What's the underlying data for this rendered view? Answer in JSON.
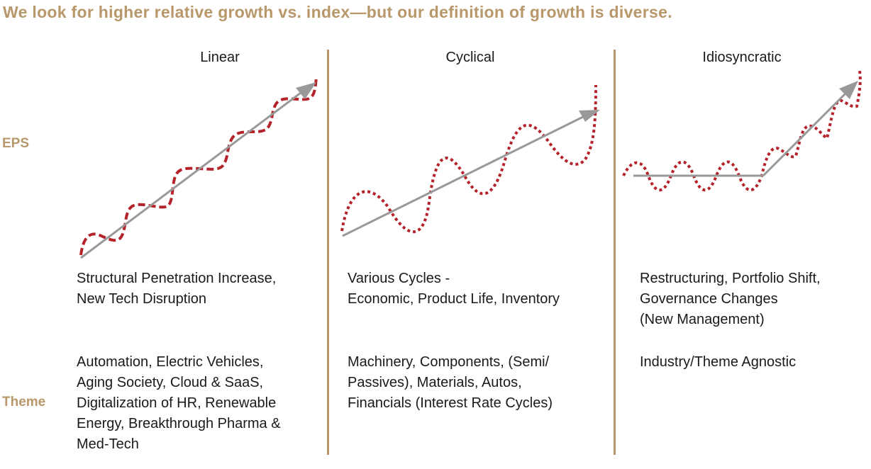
{
  "title": "We look for higher relative growth vs. index—but our definition of growth is diverse.",
  "row_labels": {
    "eps": "EPS",
    "theme": "Theme"
  },
  "columns": [
    {
      "heading": "Linear",
      "driver_lines": [
        "Structural Penetration Increase,",
        "New Tech Disruption"
      ],
      "theme_lines": [
        "Automation, Electric Vehicles,",
        "Aging Society, Cloud & SaaS,",
        "Digitalization of HR, Renewable",
        "Energy, Breakthrough Pharma &",
        "Med-Tech"
      ]
    },
    {
      "heading": "Cyclical",
      "driver_lines": [
        "Various Cycles -",
        "Economic, Product Life, Inventory"
      ],
      "theme_lines": [
        "Machinery, Components, (Semi/",
        "Passives), Materials, Autos,",
        "Financials (Interest Rate Cycles)"
      ]
    },
    {
      "heading": "Idiosyncratic",
      "driver_lines": [
        "Restructuring, Portfolio Shift,",
        "Governance Changes",
        "(New Management)"
      ],
      "theme_lines": [
        "Industry/Theme Agnostic"
      ]
    }
  ],
  "colors": {
    "accent": "#b8976a",
    "eps_curve": "#b5232a",
    "trend_arrow": "#999999",
    "text": "#1a1a1a"
  }
}
